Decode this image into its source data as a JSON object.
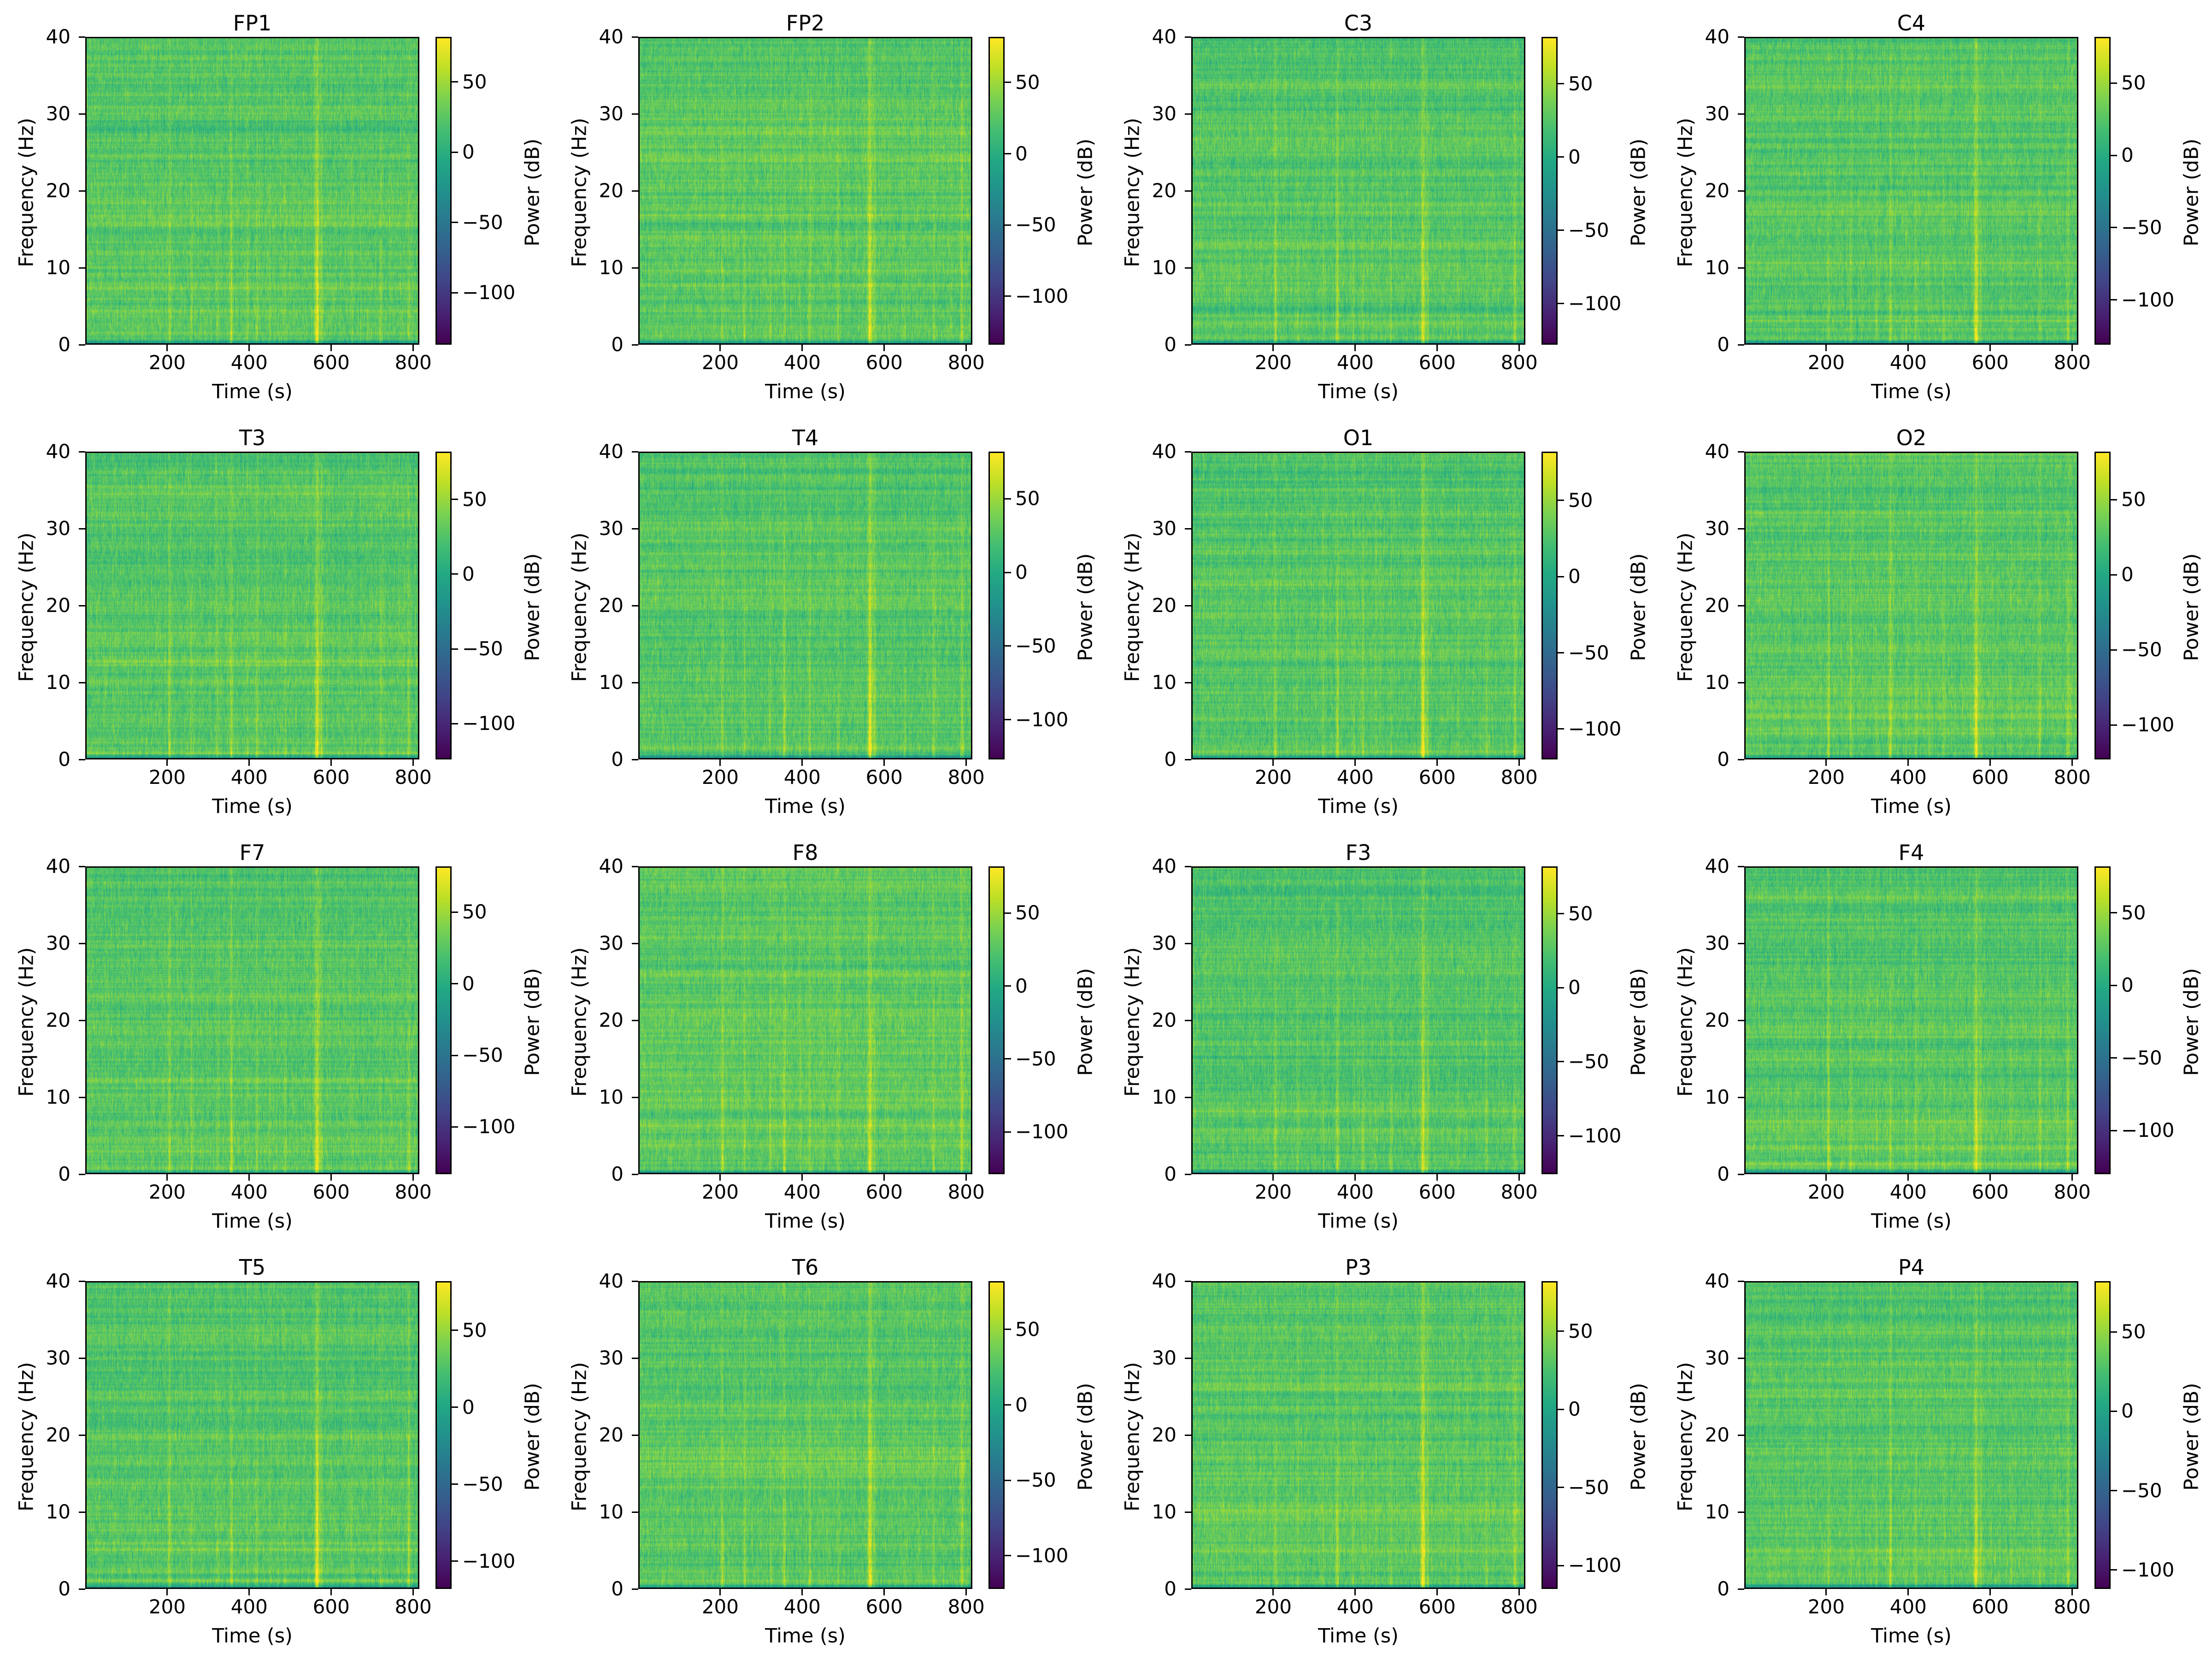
{
  "figure": {
    "background": "#ffffff",
    "text_color": "#000000",
    "rows": 4,
    "cols": 4
  },
  "axes": {
    "xlabel": "Time (s)",
    "ylabel": "Frequency (Hz)",
    "x_ticks": [
      "200",
      "400",
      "600",
      "800"
    ],
    "y_ticks": [
      "0",
      "10",
      "20",
      "30",
      "40"
    ]
  },
  "colorbar": {
    "label": "Power (dB)",
    "ticks": [
      "50",
      "0",
      "−50",
      "−100"
    ]
  },
  "channels": [
    {
      "name": "FP1",
      "cb_min_db": -137
    },
    {
      "name": "FP2",
      "cb_min_db": -134
    },
    {
      "name": "C3",
      "cb_min_db": -128
    },
    {
      "name": "C4",
      "cb_min_db": -131
    },
    {
      "name": "T3",
      "cb_min_db": -124
    },
    {
      "name": "T4",
      "cb_min_db": -127
    },
    {
      "name": "O1",
      "cb_min_db": -120
    },
    {
      "name": "O2",
      "cb_min_db": -123
    },
    {
      "name": "F7",
      "cb_min_db": -133
    },
    {
      "name": "F8",
      "cb_min_db": -129
    },
    {
      "name": "F3",
      "cb_min_db": -126
    },
    {
      "name": "F4",
      "cb_min_db": -130
    },
    {
      "name": "T5",
      "cb_min_db": -118
    },
    {
      "name": "T6",
      "cb_min_db": -122
    },
    {
      "name": "P3",
      "cb_min_db": -115
    },
    {
      "name": "P4",
      "cb_min_db": -112
    }
  ],
  "chart_data": {
    "type": "heatmap",
    "subtype": "spectrogram-grid",
    "title": "",
    "panels": [
      "FP1",
      "FP2",
      "C3",
      "C4",
      "T3",
      "T4",
      "O1",
      "O2",
      "F7",
      "F8",
      "F3",
      "F4",
      "T5",
      "T6",
      "P3",
      "P4"
    ],
    "grid_layout": "4x4",
    "xlabel": "Time (s)",
    "ylabel": "Frequency (Hz)",
    "x_range_s": [
      0,
      815
    ],
    "x_ticks": [
      200,
      400,
      600,
      800
    ],
    "y_range_hz": [
      0,
      40
    ],
    "y_ticks": [
      0,
      10,
      20,
      30,
      40
    ],
    "colorbar_label": "Power (dB)",
    "colorbar_ticks": [
      50,
      0,
      -50,
      -100
    ],
    "colorbar_max_db": 82,
    "colorbar_min_db_per_panel": [
      -137,
      -134,
      -128,
      -131,
      -124,
      -127,
      -120,
      -123,
      -133,
      -129,
      -126,
      -130,
      -118,
      -122,
      -115,
      -112
    ],
    "colormap": "viridis",
    "colormap_stops": [
      "#440154",
      "#482374",
      "#414487",
      "#355f8d",
      "#2a788e",
      "#21918c",
      "#22a884",
      "#44be70",
      "#7ad151",
      "#bddf26",
      "#fde725"
    ],
    "baseline_power_db": 24,
    "artifact_times_s": [
      205,
      259,
      322,
      356,
      395,
      418,
      450,
      487,
      565,
      576,
      650,
      720,
      789
    ],
    "artifact_relative_strength": [
      0.11,
      0.07,
      0.055,
      0.12,
      0.05,
      0.085,
      0.04,
      0.06,
      0.235,
      0.09,
      0.045,
      0.075,
      0.11
    ],
    "strongest_artifact_s": 565,
    "low_band_note": "dark low-power teal band below ~1 Hz in every panel",
    "artifact_note": "bright vertical broadband lines strongest at low frequencies, maximal near 565 s",
    "grid": false,
    "legend": false
  }
}
